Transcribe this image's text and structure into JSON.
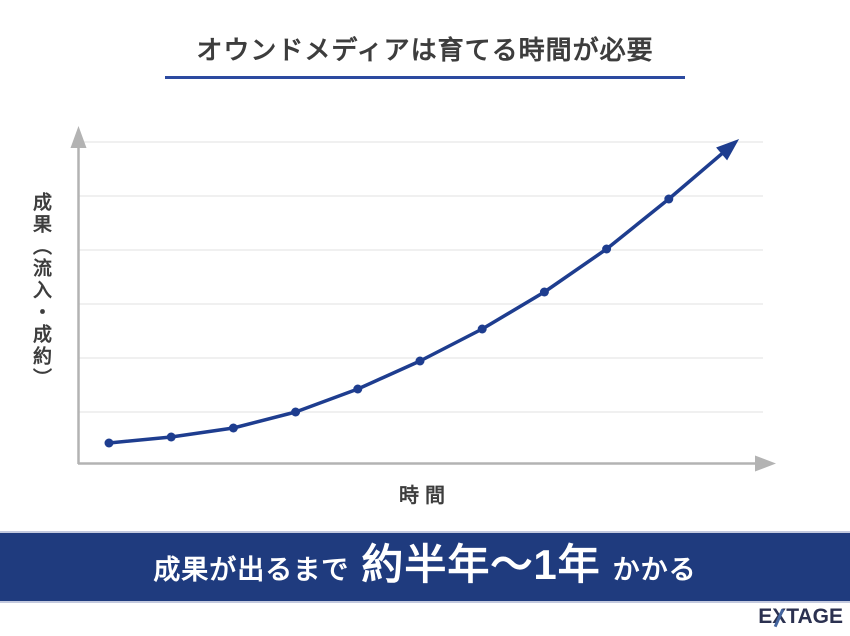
{
  "header": {
    "title": "オウンドメディアは育てる時間が必要",
    "underline_color": "#2c4aa0"
  },
  "chart": {
    "ylabel": "成果（流入・成約）",
    "xlabel": "時間"
  },
  "chart_data": {
    "type": "line",
    "title": "オウンドメディアは育てる時間が必要",
    "xlabel": "時間",
    "ylabel": "成果（流入・成約）",
    "x": [
      0,
      1,
      2,
      3,
      4,
      5,
      6,
      7,
      8,
      9
    ],
    "y": [
      21,
      27,
      36,
      52,
      75,
      103,
      135,
      172,
      215,
      265
    ],
    "arrow_tip": [
      10.13,
      325
    ],
    "xlim": [
      -0.5,
      10.7
    ],
    "ylim": [
      0,
      335
    ],
    "tick_labels": "none",
    "grid": "horizontal",
    "gridline_count": 6,
    "legend": "none",
    "series_color": "#1e3d8f",
    "axis_color": "#b3b3b3",
    "grid_color": "#e6e6e6",
    "marker": "circle"
  },
  "banner": {
    "prefix": "成果が出るまで",
    "highlight": "約半年〜1年",
    "suffix": "かかる",
    "bg_color": "#1f3b7e",
    "text_color": "#ffffff"
  },
  "footer": {
    "logo_part1": "E",
    "logo_part_x": "X",
    "logo_part2": "TAGE"
  }
}
